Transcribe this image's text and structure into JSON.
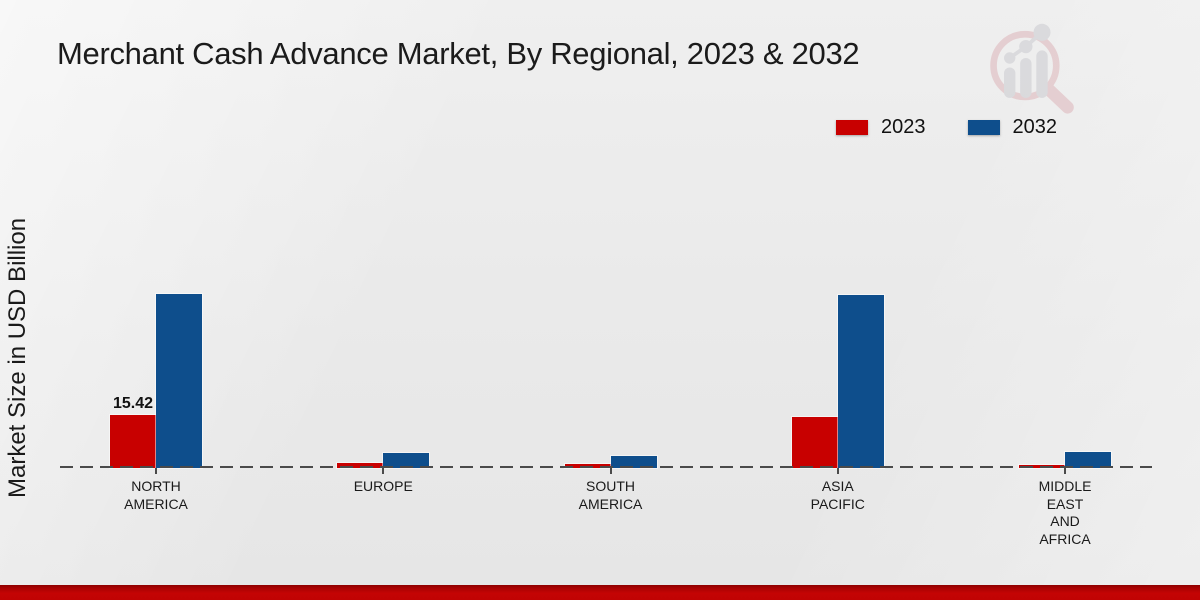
{
  "chart_data": {
    "type": "bar",
    "title": "Merchant Cash Advance Market, By Regional, 2023 & 2032",
    "ylabel": "Market Size in USD Billion",
    "categories": [
      "North America",
      "Europe",
      "South America",
      "Asia Pacific",
      "Middle East and Africa"
    ],
    "category_display_lines": [
      [
        "NORTH",
        "AMERICA"
      ],
      [
        "EUROPE"
      ],
      [
        "SOUTH",
        "AMERICA"
      ],
      [
        "ASIA",
        "PACIFIC"
      ],
      [
        "MIDDLE",
        "EAST",
        "AND",
        "AFRICA"
      ]
    ],
    "series": [
      {
        "name": "2023",
        "color": "#C80000",
        "values": [
          15.42,
          1.5,
          1.2,
          14.9,
          0.9
        ]
      },
      {
        "name": "2032",
        "color": "#0E4E8C",
        "values": [
          50.6,
          4.3,
          3.4,
          50.3,
          4.7
        ]
      }
    ],
    "data_labels": [
      {
        "series_index": 0,
        "category_index": 0,
        "text": "15.42"
      }
    ],
    "legend_position": "top-right",
    "grid": false,
    "baseline_style": "dashed",
    "ylim": [
      0,
      55
    ]
  },
  "branding": {
    "logo_icon": "magnifier-bar-chart-logo",
    "footer_color": "#C00000"
  }
}
